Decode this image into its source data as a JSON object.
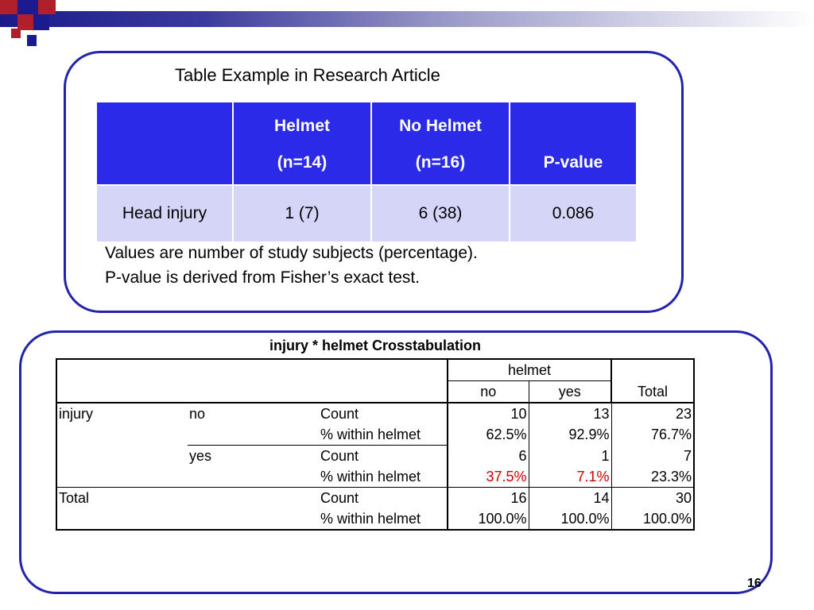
{
  "colors": {
    "accent_blue": "#2a2ae8",
    "light_blue": "#d5d5f7",
    "border_blue": "#2222aa",
    "emphasis_red": "#cc0000"
  },
  "slide": {
    "title": "Table Example in Research Article",
    "table1": {
      "header": [
        "",
        "Helmet",
        "No Helmet",
        "P-value"
      ],
      "subheader": [
        "",
        "(n=14)",
        "(n=16)",
        ""
      ],
      "rows": [
        [
          "Head injury",
          "1 (7)",
          "6 (38)",
          "0.086"
        ]
      ]
    },
    "notes": [
      "Values are number of study subjects (percentage).",
      "P-value is derived from Fisher’s exact test."
    ],
    "crosstab": {
      "title": "injury * helmet Crosstabulation",
      "col_group": "helmet",
      "col_no": "no",
      "col_yes": "yes",
      "col_total": "Total",
      "injury_label": "injury",
      "total_label": "Total",
      "rows": [
        {
          "sub": "no",
          "stat": "Count",
          "no": "10",
          "yes": "13",
          "total": "23"
        },
        {
          "sub": "",
          "stat": "% within helmet",
          "no": "62.5%",
          "yes": "92.9%",
          "total": "76.7%"
        },
        {
          "sub": "yes",
          "stat": "Count",
          "no": "6",
          "yes": "1",
          "total": "7"
        },
        {
          "sub": "",
          "stat": "% within helmet",
          "no": "37.5%",
          "yes": "7.1%",
          "total": "23.3%"
        },
        {
          "sub": "",
          "stat": "Count",
          "no": "16",
          "yes": "14",
          "total": "30"
        },
        {
          "sub": "",
          "stat": "% within helmet",
          "no": "100.0%",
          "yes": "100.0%",
          "total": "100.0%"
        }
      ]
    },
    "page_number": "16"
  }
}
